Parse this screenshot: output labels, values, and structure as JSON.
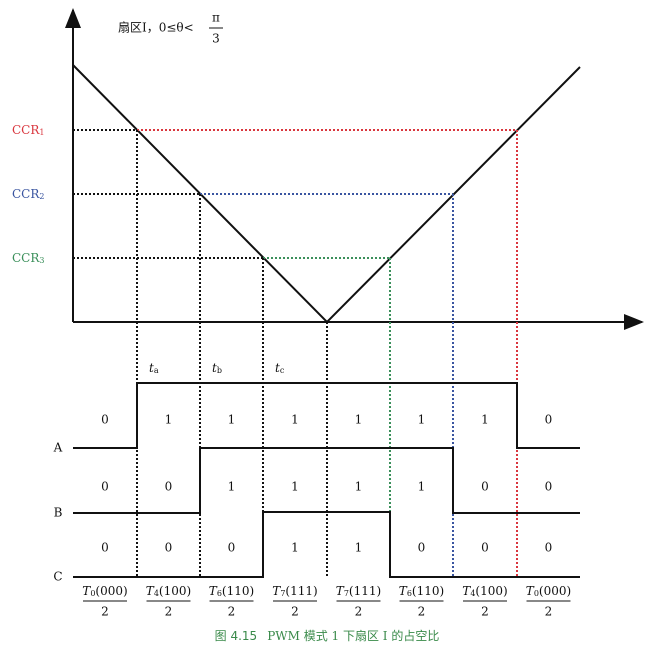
{
  "sector": {
    "text": "扇区I，0≤θ<",
    "numerator": "π",
    "denominator": "3"
  },
  "ccr_labels": [
    {
      "base": "CCR",
      "sub": "1"
    },
    {
      "base": "CCR",
      "sub": "2"
    },
    {
      "base": "CCR",
      "sub": "3"
    }
  ],
  "t_labels": [
    {
      "base": "t",
      "sub": "a"
    },
    {
      "base": "t",
      "sub": "b"
    },
    {
      "base": "t",
      "sub": "c"
    }
  ],
  "signals": [
    {
      "name": "A",
      "bits": [
        "0",
        "1",
        "1",
        "1",
        "1",
        "1",
        "1",
        "0"
      ]
    },
    {
      "name": "B",
      "bits": [
        "0",
        "0",
        "1",
        "1",
        "1",
        "1",
        "0",
        "0"
      ]
    },
    {
      "name": "C",
      "bits": [
        "0",
        "0",
        "0",
        "1",
        "1",
        "0",
        "0",
        "0"
      ]
    }
  ],
  "intervals": [
    {
      "base": "T",
      "sub": "0",
      "state": "(000)",
      "denominator": "2"
    },
    {
      "base": "T",
      "sub": "4",
      "state": "(100)",
      "denominator": "2"
    },
    {
      "base": "T",
      "sub": "6",
      "state": "(110)",
      "denominator": "2"
    },
    {
      "base": "T",
      "sub": "7",
      "state": "(111)",
      "denominator": "2"
    },
    {
      "base": "T",
      "sub": "7",
      "state": "(111)",
      "denominator": "2"
    },
    {
      "base": "T",
      "sub": "6",
      "state": "(110)",
      "denominator": "2"
    },
    {
      "base": "T",
      "sub": "4",
      "state": "(100)",
      "denominator": "2"
    },
    {
      "base": "T",
      "sub": "0",
      "state": "(000)",
      "denominator": "2"
    }
  ],
  "caption": {
    "figure": "图 4.15",
    "text": "PWM 模式 1 下扇区 I 的占空比"
  }
}
